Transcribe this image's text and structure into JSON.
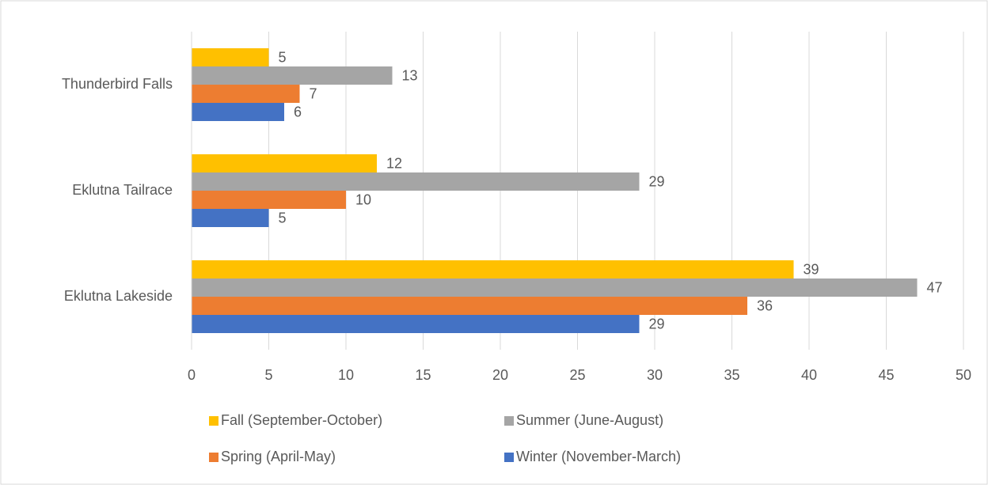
{
  "chart_data": {
    "type": "hbar",
    "categories": [
      "Thunderbird Falls",
      "Eklutna Tailrace",
      "Eklutna Lakeside"
    ],
    "series": [
      {
        "name": "Fall (September-October)",
        "color": "#ffc000",
        "values": [
          5,
          12,
          39
        ]
      },
      {
        "name": "Summer (June-August)",
        "color": "#a5a5a5",
        "values": [
          13,
          29,
          47
        ]
      },
      {
        "name": "Spring (April-May)",
        "color": "#ed7d31",
        "values": [
          7,
          10,
          36
        ]
      },
      {
        "name": "Winter (November-March)",
        "color": "#4472c4",
        "values": [
          6,
          5,
          29
        ]
      }
    ],
    "xlim": [
      0,
      50
    ],
    "xticks": [
      0,
      5,
      10,
      15,
      20,
      25,
      30,
      35,
      40,
      45,
      50
    ],
    "grid": true,
    "legend": "bottom"
  }
}
